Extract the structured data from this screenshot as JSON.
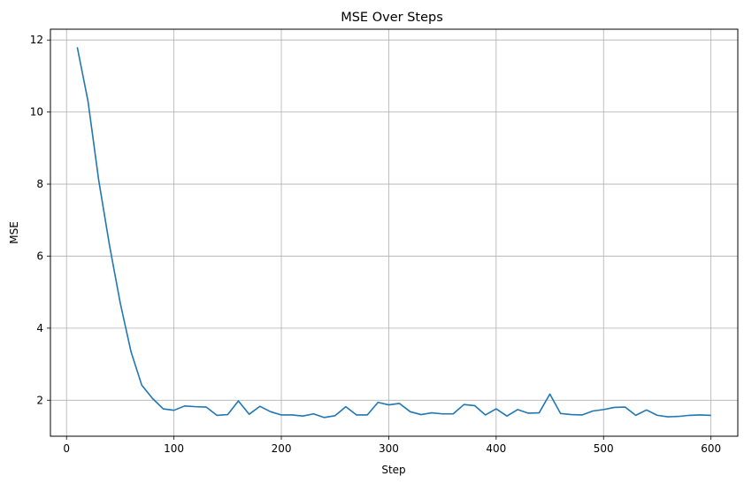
{
  "chart_data": {
    "type": "line",
    "title": "MSE Over Steps",
    "xlabel": "Step",
    "ylabel": "MSE",
    "xlim": [
      -15,
      625
    ],
    "ylim": [
      1.0,
      12.3
    ],
    "xticks": [
      0,
      100,
      200,
      300,
      400,
      500,
      600
    ],
    "yticks": [
      2,
      4,
      6,
      8,
      10,
      12
    ],
    "grid": true,
    "series": [
      {
        "color": "#1f77b4",
        "x": [
          10,
          20,
          30,
          40,
          50,
          60,
          70,
          80,
          90,
          100,
          110,
          120,
          130,
          140,
          150,
          160,
          170,
          180,
          190,
          200,
          210,
          220,
          230,
          240,
          250,
          260,
          270,
          280,
          290,
          300,
          310,
          320,
          330,
          340,
          350,
          360,
          370,
          380,
          390,
          400,
          410,
          420,
          430,
          440,
          450,
          460,
          470,
          480,
          490,
          500,
          510,
          520,
          530,
          540,
          550,
          560,
          570,
          580,
          590,
          600
        ],
        "y": [
          11.8,
          10.3,
          8.1,
          6.3,
          4.7,
          3.35,
          2.42,
          2.05,
          1.76,
          1.72,
          1.84,
          1.82,
          1.81,
          1.58,
          1.6,
          1.98,
          1.61,
          1.83,
          1.68,
          1.59,
          1.59,
          1.56,
          1.62,
          1.52,
          1.57,
          1.82,
          1.59,
          1.59,
          1.94,
          1.87,
          1.91,
          1.68,
          1.6,
          1.65,
          1.62,
          1.62,
          1.88,
          1.85,
          1.59,
          1.76,
          1.56,
          1.74,
          1.64,
          1.65,
          2.17,
          1.63,
          1.6,
          1.59,
          1.7,
          1.74,
          1.8,
          1.81,
          1.58,
          1.73,
          1.58,
          1.54,
          1.55,
          1.58,
          1.59,
          1.58
        ]
      }
    ]
  }
}
